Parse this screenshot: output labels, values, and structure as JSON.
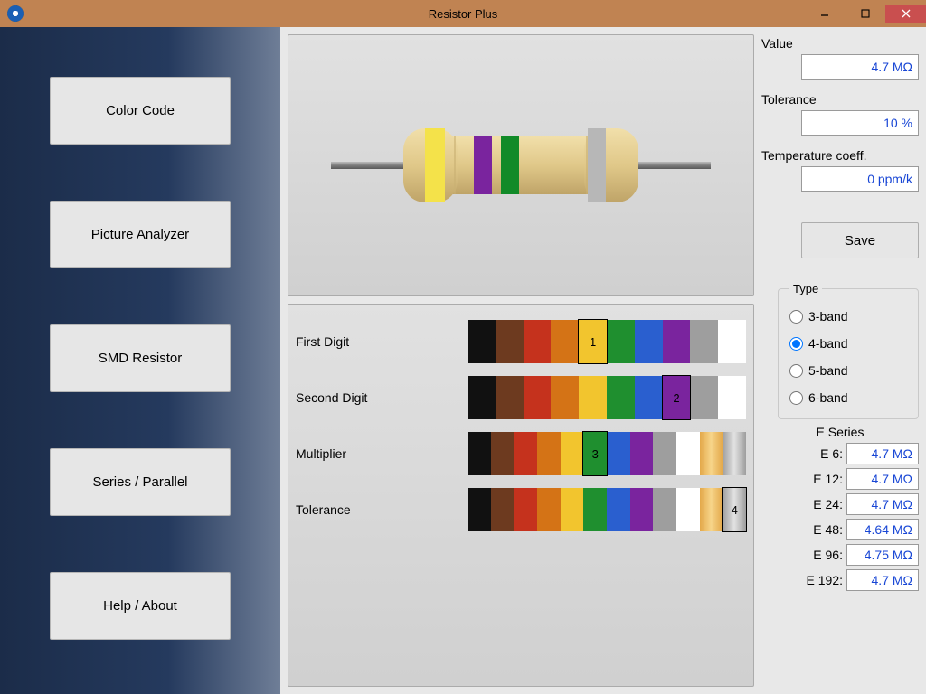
{
  "window": {
    "title": "Resistor Plus"
  },
  "sidebar": {
    "items": [
      {
        "label": "Color Code"
      },
      {
        "label": "Picture Analyzer"
      },
      {
        "label": "SMD Resistor"
      },
      {
        "label": "Series / Parallel"
      },
      {
        "label": "Help / About"
      }
    ]
  },
  "readouts": {
    "value_label": "Value",
    "value": "4.7 MΩ",
    "tolerance_label": "Tolerance",
    "tolerance": "10 %",
    "tempco_label": "Temperature coeff.",
    "tempco": "0 ppm/k",
    "save_label": "Save"
  },
  "type_group": {
    "legend": "Type",
    "options": [
      "3-band",
      "4-band",
      "5-band",
      "6-band"
    ],
    "selected": "4-band"
  },
  "eseries": {
    "title": "E Series",
    "rows": [
      {
        "label": "E 6:",
        "value": "4.7 MΩ"
      },
      {
        "label": "E 12:",
        "value": "4.7 MΩ"
      },
      {
        "label": "E 24:",
        "value": "4.7 MΩ"
      },
      {
        "label": "E 48:",
        "value": "4.64 MΩ"
      },
      {
        "label": "E 96:",
        "value": "4.75 MΩ"
      },
      {
        "label": "E 192:",
        "value": "4.7 MΩ"
      }
    ]
  },
  "resistor": {
    "body_color": "#e0c889",
    "body_shadow": "#c9b073",
    "wire_color": "#888888",
    "bands": [
      "#f4e24a",
      "#7a249e",
      "#118a28",
      "#b7b7b7"
    ]
  },
  "band_rows": [
    {
      "label": "First Digit",
      "marker": "1",
      "selected_index": 4,
      "colors": [
        "#111111",
        "#6d3a1f",
        "#c5321d",
        "#d47316",
        "#f2c52e",
        "#1f8f2f",
        "#2a5fcf",
        "#7a249e",
        "#9e9e9e",
        "#ffffff"
      ]
    },
    {
      "label": "Second Digit",
      "marker": "2",
      "selected_index": 7,
      "colors": [
        "#111111",
        "#6d3a1f",
        "#c5321d",
        "#d47316",
        "#f2c52e",
        "#1f8f2f",
        "#2a5fcf",
        "#7a249e",
        "#9e9e9e",
        "#ffffff"
      ]
    },
    {
      "label": "Multiplier",
      "marker": "3",
      "selected_index": 5,
      "colors": [
        "#111111",
        "#6d3a1f",
        "#c5321d",
        "#d47316",
        "#f2c52e",
        "#1f8f2f",
        "#2a5fcf",
        "#7a249e",
        "#9e9e9e",
        "#ffffff",
        "gold",
        "silver"
      ]
    },
    {
      "label": "Tolerance",
      "marker": "4",
      "selected_index": 11,
      "colors": [
        "#111111",
        "#6d3a1f",
        "#c5321d",
        "#d47316",
        "#f2c52e",
        "#1f8f2f",
        "#2a5fcf",
        "#7a249e",
        "#9e9e9e",
        "#ffffff",
        "gold",
        "silver"
      ]
    }
  ]
}
